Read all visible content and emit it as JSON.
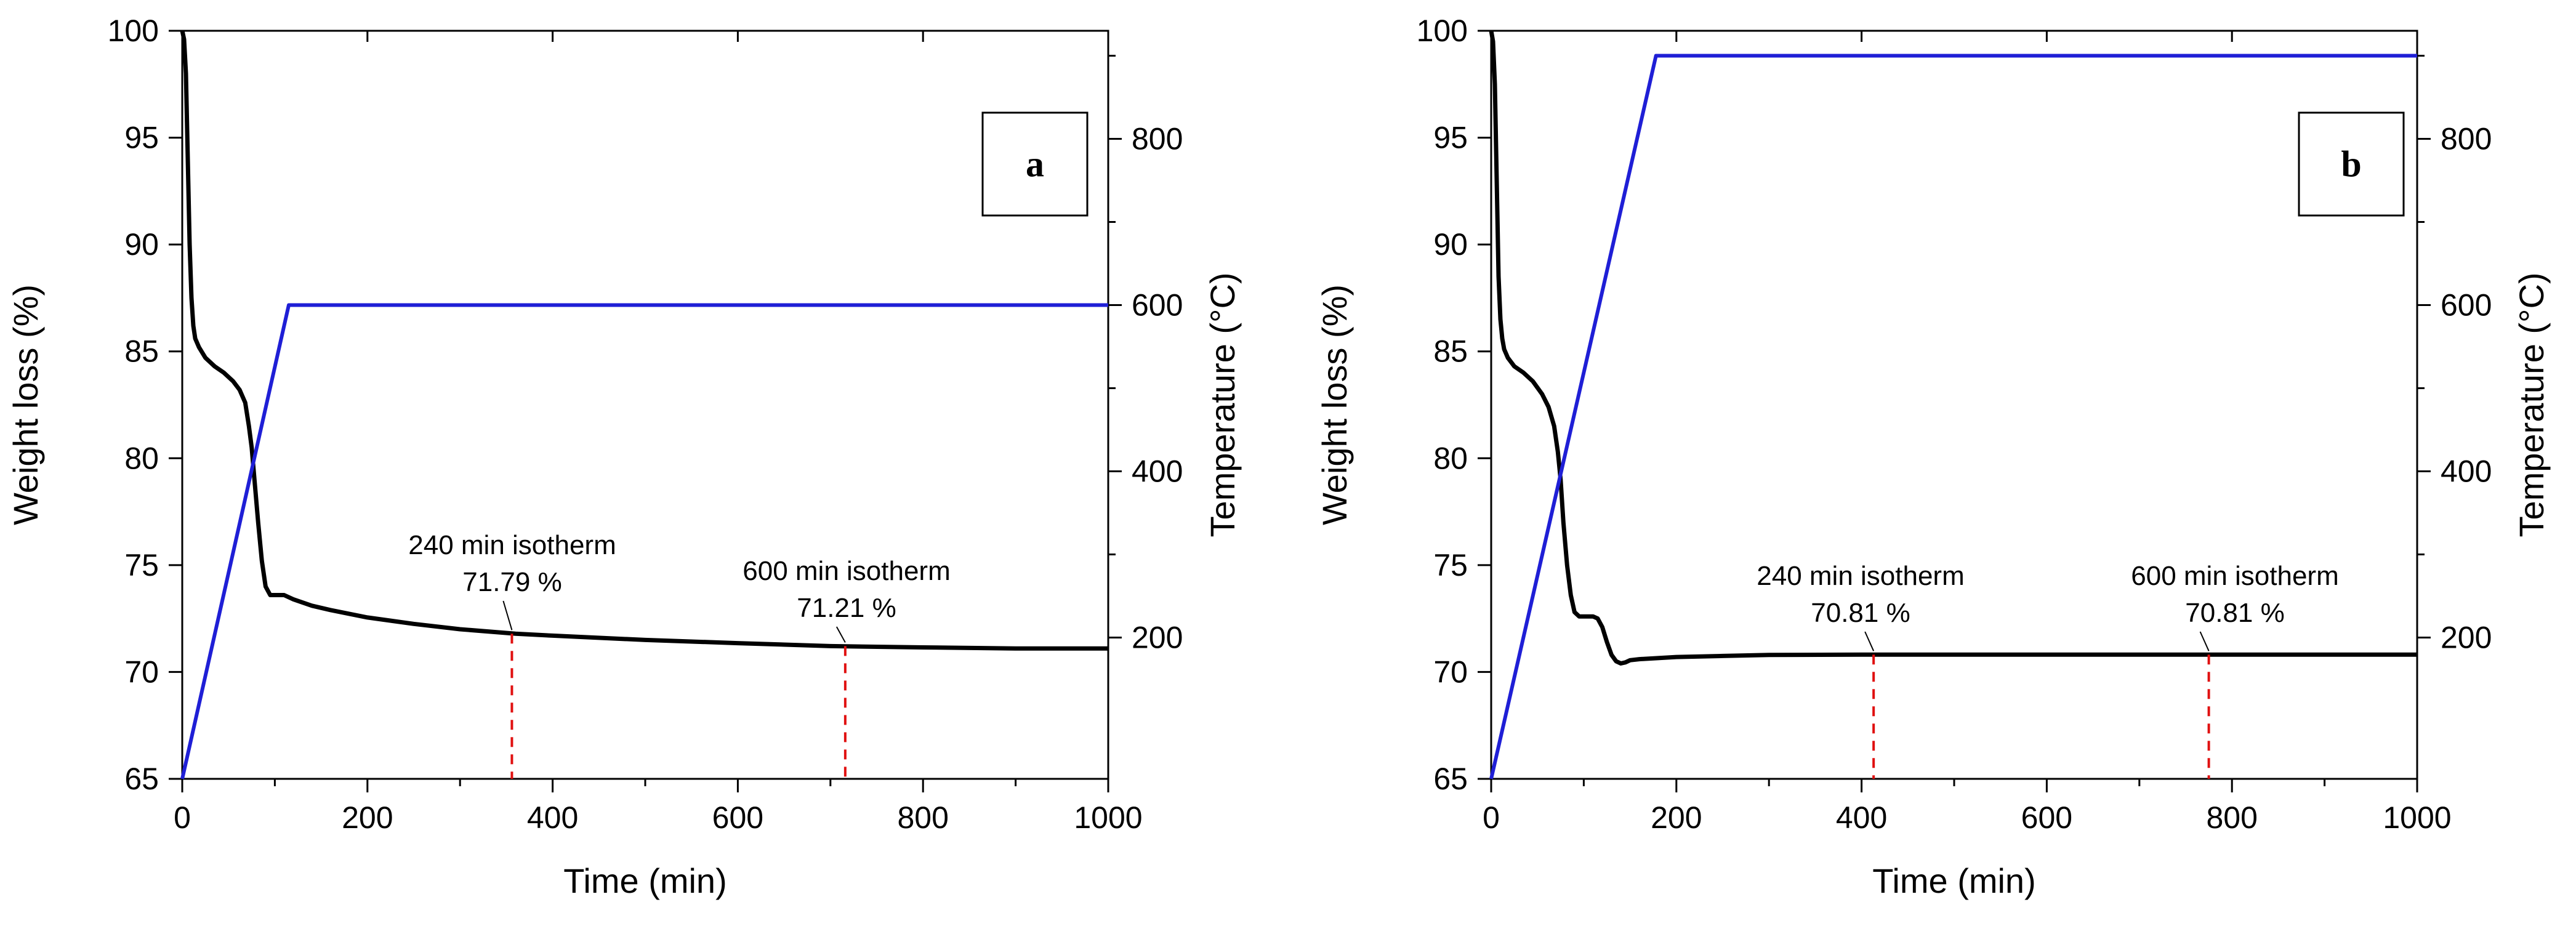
{
  "colors": {
    "weight_line": "#000000",
    "temperature_line": "#1f1fd6",
    "marker_line": "#e01010",
    "axis": "#000000"
  },
  "chart_data": [
    {
      "type": "line",
      "panel_label": "a",
      "xlabel": "Time (min)",
      "ylabel": "Weight loss (%)",
      "y2label": "Temperature (°C)",
      "xlim": [
        0,
        1000
      ],
      "ylim": [
        65,
        100
      ],
      "y2lim": [
        30,
        930
      ],
      "xticks": [
        0,
        200,
        400,
        600,
        800,
        1000
      ],
      "yticks": [
        65,
        70,
        75,
        80,
        85,
        90,
        95,
        100
      ],
      "y2ticks": [
        200,
        400,
        600,
        800
      ],
      "grid": false,
      "series": [
        {
          "axis": "left",
          "color": "#000000",
          "x": [
            0,
            2,
            4,
            6,
            8,
            10,
            12,
            14,
            18,
            25,
            35,
            45,
            55,
            62,
            68,
            72,
            75,
            78,
            82,
            86,
            90,
            95,
            100,
            110,
            120,
            140,
            160,
            200,
            250,
            300,
            360,
            400,
            500,
            600,
            700,
            800,
            900,
            1000
          ],
          "values": [
            100,
            99.6,
            98,
            94,
            90,
            87.5,
            86.2,
            85.6,
            85.2,
            84.7,
            84.3,
            84.0,
            83.6,
            83.2,
            82.6,
            81.5,
            80.5,
            79.0,
            77.0,
            75.2,
            74.0,
            73.6,
            73.6,
            73.6,
            73.4,
            73.1,
            72.9,
            72.55,
            72.25,
            72.0,
            71.79,
            71.7,
            71.5,
            71.35,
            71.21,
            71.15,
            71.1,
            71.1
          ]
        },
        {
          "axis": "right",
          "color": "#1f1fd6",
          "x": [
            0,
            115,
            1000
          ],
          "values": [
            30,
            600,
            600
          ]
        }
      ],
      "markers": [
        {
          "x": 356,
          "y": 71.79,
          "label_line1": "240 min isotherm",
          "label_line2": "71.79 %"
        },
        {
          "x": 716,
          "y": 71.21,
          "label_line1": "600 min isotherm",
          "label_line2": "71.21 %"
        }
      ]
    },
    {
      "type": "line",
      "panel_label": "b",
      "xlabel": "Time (min)",
      "ylabel": "Weight loss (%)",
      "y2label": "Temperature (°C)",
      "xlim": [
        0,
        1000
      ],
      "ylim": [
        65,
        100
      ],
      "y2lim": [
        30,
        930
      ],
      "xticks": [
        0,
        200,
        400,
        600,
        800,
        1000
      ],
      "yticks": [
        65,
        70,
        75,
        80,
        85,
        90,
        95,
        100
      ],
      "y2ticks": [
        200,
        400,
        600,
        800
      ],
      "grid": false,
      "series": [
        {
          "axis": "left",
          "color": "#000000",
          "x": [
            0,
            2,
            4,
            6,
            8,
            10,
            12,
            14,
            18,
            25,
            35,
            45,
            55,
            62,
            68,
            72,
            75,
            78,
            82,
            86,
            90,
            95,
            100,
            110,
            115,
            120,
            125,
            130,
            135,
            140,
            145,
            150,
            160,
            180,
            200,
            250,
            300,
            400,
            500,
            600,
            700,
            800,
            900,
            1000
          ],
          "values": [
            100,
            99.5,
            97.5,
            93,
            88.5,
            86.5,
            85.6,
            85.1,
            84.7,
            84.3,
            84.0,
            83.6,
            83.0,
            82.4,
            81.5,
            80.3,
            79.0,
            77.0,
            75.0,
            73.6,
            72.8,
            72.6,
            72.6,
            72.6,
            72.5,
            72.1,
            71.4,
            70.8,
            70.5,
            70.4,
            70.45,
            70.55,
            70.6,
            70.65,
            70.7,
            70.75,
            70.8,
            70.81,
            70.81,
            70.81,
            70.81,
            70.81,
            70.81,
            70.81
          ]
        },
        {
          "axis": "right",
          "color": "#1f1fd6",
          "x": [
            0,
            178,
            1000
          ],
          "values": [
            30,
            900,
            900
          ]
        }
      ],
      "markers": [
        {
          "x": 413,
          "y": 70.81,
          "label_line1": "240 min isotherm",
          "label_line2": "70.81 %"
        },
        {
          "x": 775,
          "y": 70.81,
          "label_line1": "600 min isotherm",
          "label_line2": "70.81 %"
        }
      ]
    }
  ]
}
